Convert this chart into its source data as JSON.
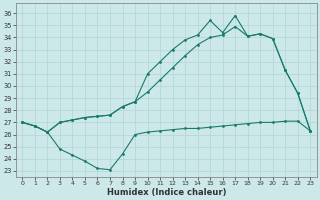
{
  "xlabel": "Humidex (Indice chaleur)",
  "xlim": [
    -0.5,
    23.5
  ],
  "ylim": [
    22.5,
    36.8
  ],
  "yticks": [
    23,
    24,
    25,
    26,
    27,
    28,
    29,
    30,
    31,
    32,
    33,
    34,
    35,
    36
  ],
  "xticks": [
    0,
    1,
    2,
    3,
    4,
    5,
    6,
    7,
    8,
    9,
    10,
    11,
    12,
    13,
    14,
    15,
    16,
    17,
    18,
    19,
    20,
    21,
    22,
    23
  ],
  "bg_color": "#cce8e8",
  "grid_color": "#b0d4d4",
  "line_color": "#1a7a6e",
  "bottom_y": [
    27.0,
    26.7,
    26.2,
    24.8,
    24.3,
    23.8,
    23.2,
    23.1,
    24.4,
    26.0,
    26.2,
    26.3,
    26.4,
    26.5,
    26.5,
    26.6,
    26.7,
    26.8,
    26.9,
    27.0,
    27.0,
    27.1,
    27.1,
    26.3
  ],
  "mid_y": [
    27.0,
    26.7,
    26.2,
    27.0,
    27.2,
    27.4,
    27.5,
    27.6,
    28.3,
    28.7,
    29.5,
    30.5,
    31.5,
    32.5,
    33.4,
    34.0,
    34.2,
    34.9,
    34.1,
    34.3,
    33.9,
    31.3,
    29.4,
    26.3
  ],
  "top_y": [
    27.0,
    26.7,
    26.2,
    27.0,
    27.2,
    27.4,
    27.5,
    27.6,
    28.3,
    28.7,
    31.0,
    32.0,
    33.0,
    33.8,
    34.2,
    35.4,
    34.4,
    35.8,
    34.1,
    34.3,
    33.9,
    31.3,
    29.4,
    26.3
  ]
}
